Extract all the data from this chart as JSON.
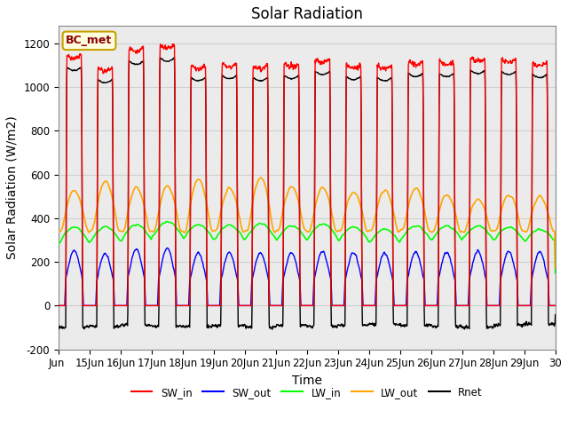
{
  "title": "Solar Radiation",
  "xlabel": "Time",
  "ylabel": "Solar Radiation (W/m2)",
  "ylim": [
    -200,
    1280
  ],
  "yticks": [
    -200,
    0,
    200,
    400,
    600,
    800,
    1000,
    1200
  ],
  "legend_labels": [
    "SW_in",
    "SW_out",
    "LW_in",
    "LW_out",
    "Rnet"
  ],
  "legend_colors": [
    "red",
    "blue",
    "green",
    "orange",
    "black"
  ],
  "annotation": "BC_met",
  "title_fontsize": 12,
  "label_fontsize": 10,
  "tick_fontsize": 8.5,
  "start_day": 14,
  "end_day": 30,
  "n_days": 16,
  "SW_peaks": [
    1150,
    1090,
    1180,
    1195,
    1100,
    1110,
    1100,
    1110,
    1130,
    1105,
    1100,
    1120,
    1120,
    1135,
    1130,
    1115
  ],
  "LW_out_peaks": [
    530,
    570,
    540,
    550,
    580,
    540,
    590,
    550,
    540,
    520,
    530,
    540,
    510,
    490,
    510,
    500
  ],
  "LW_in_base": [
    280,
    290,
    295,
    310,
    300,
    295,
    300,
    295,
    300,
    290,
    285,
    295,
    295,
    300,
    295,
    290
  ],
  "LW_in_amp": [
    80,
    70,
    75,
    75,
    70,
    75,
    75,
    70,
    75,
    70,
    65,
    70,
    70,
    65,
    65,
    60
  ],
  "night_Rnet": [
    -100,
    -95,
    -90,
    -95,
    -95,
    -90,
    -100,
    -90,
    -95,
    -90,
    -85,
    -90,
    -95,
    -100,
    -90,
    -85
  ]
}
